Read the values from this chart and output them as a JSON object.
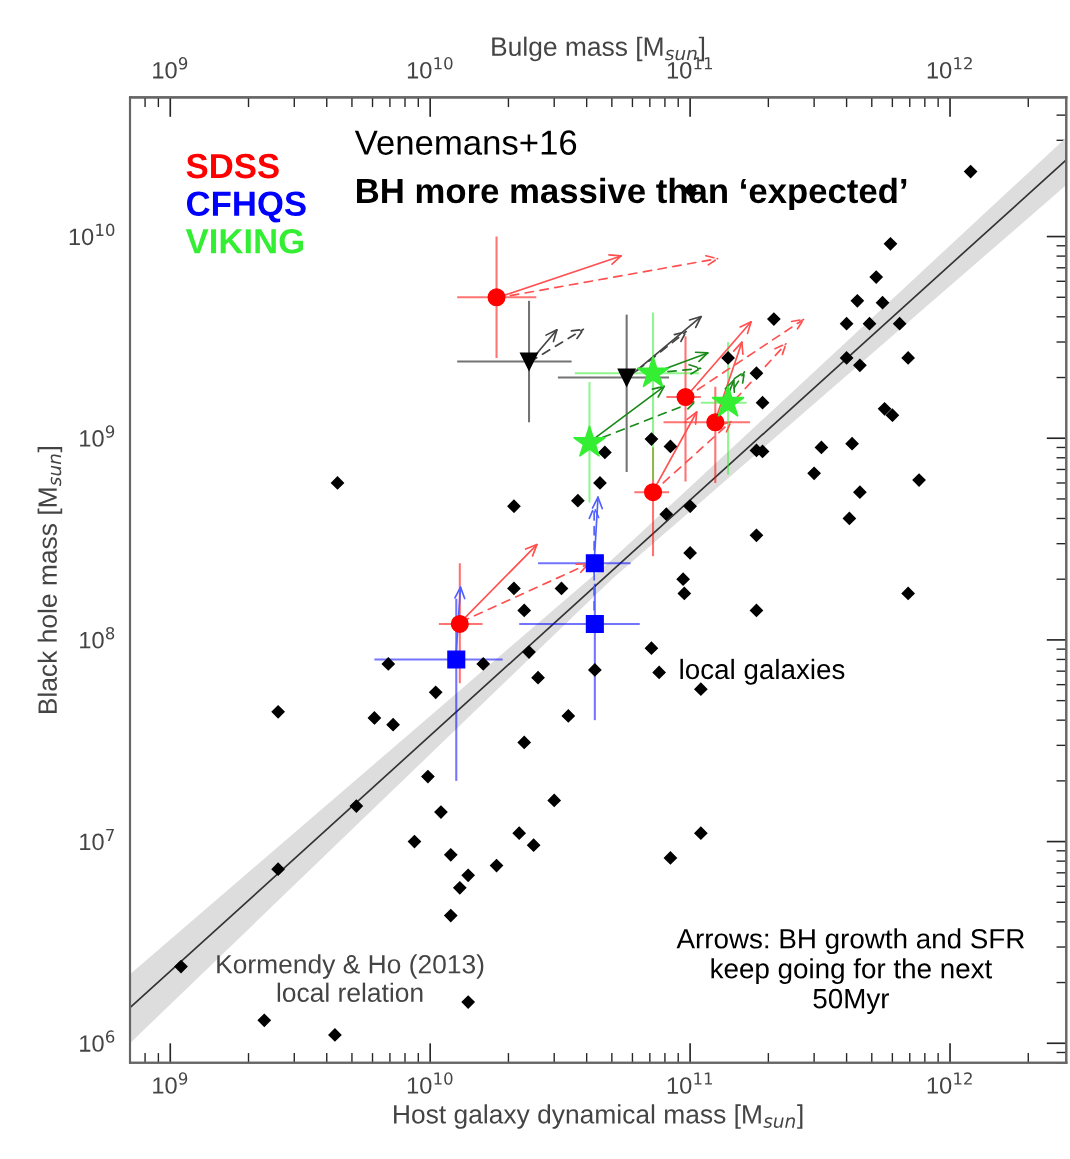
{
  "chart_data": {
    "type": "scatter",
    "xlabel": "Host galaxy dynamical mass [M$_{sun}$]",
    "ylabel": "Black hole mass [M$_{sun}$]",
    "x2label": "Bulge mass [M$_{sun}$]",
    "log": "xy",
    "xlim": [
      700000000.0,
      2800000000000.0
    ],
    "ylim": [
      800000.0,
      49000000000.0
    ],
    "xticks": [
      {
        "value": 1000000000.0,
        "label": "10$^{9}$"
      },
      {
        "value": 10000000000.0,
        "label": "10$^{10}$"
      },
      {
        "value": 100000000000.0,
        "label": "10$^{11}$"
      },
      {
        "value": 1000000000000.0,
        "label": "10$^{12}$"
      }
    ],
    "yticks": [
      {
        "value": 1000000.0,
        "label": "10$^{6}$"
      },
      {
        "value": 10000000.0,
        "label": "10$^{7}$"
      },
      {
        "value": 100000000.0,
        "label": "10$^{8}$"
      },
      {
        "value": 1000000000.0,
        "label": "10$^{9}$"
      },
      {
        "value": 10000000000.0,
        "label": "10$^{10}$"
      }
    ],
    "grid": false,
    "legend": "top left",
    "annotations": [
      "Venemans+16",
      "BH more massive than ‘expected’",
      "local galaxies",
      "Arrows: BH growth and SFR\nkeep going for the next\n50Myr",
      "Kormendy & Ho (2013)\nlocal relation"
    ],
    "series": [
      {
        "color": "#000000",
        "marker": "diamond",
        "x": [
          1100000000.0,
          2300000000.0,
          2600000000.0,
          2600000000.0,
          4300000000.0,
          4400000000.0,
          5200000000.0,
          6100000000.0,
          6900000000.0,
          7200000000.0,
          8700000000.0,
          9800000000.0,
          10500000000.0,
          11000000000.0,
          12000000000.0,
          13000000000.0,
          12000000000.0,
          14000000000.0,
          14000000000.0,
          16000000000.0,
          18000000000.0,
          21000000000.0,
          21000000000.0,
          23000000000.0,
          24000000000.0,
          23000000000.0,
          22000000000.0,
          25000000000.0,
          26000000000.0,
          30000000000.0,
          32000000000.0,
          34000000000.0,
          37000000000.0,
          45000000000.0,
          47000000000.0,
          43000000000.0,
          71000000000.0,
          76000000000.0,
          94000000000.0,
          95000000000.0,
          110000000000.0,
          110000000000.0,
          84000000000.0,
          180000000000.0,
          690000000000.0,
          71000000000.0,
          84000000000.0,
          100000000000.0,
          100000000000.0,
          81000000000.0,
          180000000000.0,
          320000000000.0,
          420000000000.0,
          300000000000.0,
          450000000000.0,
          760000000000.0,
          410000000000.0,
          180000000000.0,
          190000000000.0,
          190000000000.0,
          560000000000.0,
          600000000000.0,
          140000000000.0,
          180000000000.0,
          400000000000.0,
          450000000000.0,
          690000000000.0,
          210000000000.0,
          400000000000.0,
          490000000000.0,
          640000000000.0,
          440000000000.0,
          550000000000.0,
          520000000000.0,
          590000000000.0,
          100000000000.0,
          1200000000000.0
        ],
        "values": [
          2400000.0,
          1300000.0,
          44000000.0,
          7300000.0,
          1100000.0,
          600000000.0,
          15000000.0,
          41000000.0,
          76000000.0,
          38000000.0,
          10000000.0,
          21000000.0,
          55000000.0,
          14000000.0,
          8600000.0,
          5900000.0,
          4300000.0,
          6800000.0,
          1600000.0,
          76000000.0,
          7600000.0,
          460000000.0,
          180000000.0,
          140000000.0,
          87000000.0,
          31000000.0,
          11000000.0,
          9600000.0,
          65000000.0,
          16000000.0,
          180000000.0,
          42000000.0,
          490000000.0,
          600000000.0,
          850000000.0,
          71000000.0,
          91000000.0,
          69000000.0,
          200000000.0,
          170000000.0,
          57000000.0,
          11000000.0,
          8300000.0,
          140000000.0,
          170000000.0,
          990000000.0,
          910000000.0,
          270000000.0,
          460000000.0,
          420000000.0,
          330000000.0,
          900000000.0,
          940000000.0,
          670000000.0,
          540000000.0,
          620000000.0,
          400000000.0,
          870000000.0,
          860000000.0,
          1500000000.0,
          1400000000.0,
          1300000000.0,
          2500000000.0,
          2100000000.0,
          2500000000.0,
          2300000000.0,
          2500000000.0,
          3900000000.0,
          3700000000.0,
          3700000000.0,
          3700000000.0,
          4800000000.0,
          4700000000.0,
          6300000000.0,
          9200000000.0,
          17000000000.0,
          21000000000.0
        ]
      },
      {
        "type": "line",
        "color": "#333333",
        "x": [
          700000000.0,
          50000000000.0,
          2800000000000.0
        ],
        "values": [
          1500000.0,
          220000000.0,
          24000000000.0
        ],
        "lower": [
          1000000.0,
          200000000.0,
          18000000000.0
        ],
        "upper": [
          2200000.0,
          250000000.0,
          31000000000.0
        ]
      },
      {
        "color": "#000000",
        "marker": "triangle",
        "x": [
          24000000000.0,
          57000000000.0
        ],
        "values": [
          2400000000.0,
          2000000000.0
        ],
        "errors": [
          [
            1200000000.0,
            4800000000.0
          ],
          [
            680000000.0,
            4100000000.0
          ]
        ],
        "xerrors": [
          [
            12700000000.0,
            35000000000.0
          ],
          [
            31000000000.0,
            83000000000.0
          ]
        ]
      },
      {
        "name": "SDSS",
        "color": "#ff0000",
        "marker": "circle",
        "x": [
          18000000000.0,
          13000000000.0,
          72000000000.0,
          96000000000.0,
          125000000000.0
        ],
        "values": [
          5000000000.0,
          120000000.0,
          540000000.0,
          1600000000.0,
          1200000000.0
        ],
        "errors": [
          [
            2500000000.0,
            10000000000.0
          ],
          [
            61000000.0,
            240000000.0
          ],
          [
            260000000.0,
            900000000.0
          ],
          [
            610000000.0,
            3200000000.0
          ],
          [
            600000000.0,
            1800000000.0
          ]
        ],
        "xerrors": [
          [
            12700000000.0,
            25600000000.0
          ],
          [
            10800000000.0,
            15900000000.0
          ],
          [
            61000000000.0,
            83000000000.0
          ],
          [
            81000000000.0,
            110000000000.0
          ],
          [
            79000000000.0,
            170000000000.0
          ]
        ]
      },
      {
        "name": "CFHQS",
        "color": "#0000ff",
        "marker": "square",
        "x": [
          12600000000.0,
          43000000000.0,
          43000000000.0
        ],
        "values": [
          80000000.0,
          120000000.0,
          240000000.0
        ],
        "errors": [
          [
            20000000.0,
            160000000.0
          ],
          [
            40000000.0,
            190000000.0
          ],
          null
        ],
        "xerrors": [
          [
            6100000000.0,
            19000000000.0
          ],
          [
            22000000000.0,
            64000000000.0
          ],
          [
            26000000000.0,
            59000000000.0
          ]
        ]
      },
      {
        "name": "VIKING",
        "color": "#33ee33",
        "marker": "star",
        "x": [
          41000000000.0,
          72000000000.0,
          140000000000.0
        ],
        "values": [
          950000000.0,
          2100000000.0,
          1500000000.0
        ],
        "errors": [
          [
            480000000.0,
            1900000000.0
          ],
          [
            620000000.0,
            4200000000.0
          ],
          [
            660000000.0,
            3000000000.0
          ]
        ],
        "xerrors": [
          null,
          [
            36000000000.0,
            108000000000.0
          ],
          [
            110000000000.0,
            165000000000.0
          ]
        ]
      }
    ]
  }
}
